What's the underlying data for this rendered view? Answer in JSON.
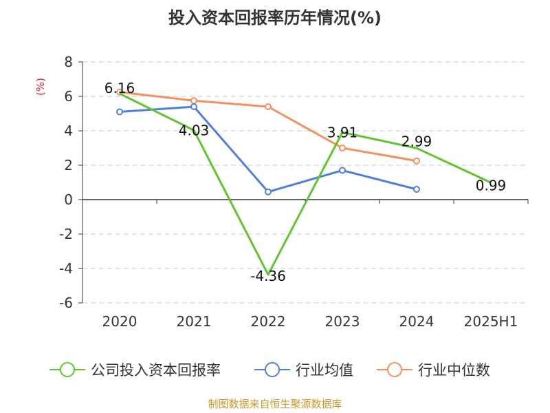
{
  "chart_data": {
    "type": "line",
    "title": "投入资本回报率历年情况(%)",
    "unit_label": "(%)",
    "categories": [
      "2020",
      "2021",
      "2022",
      "2023",
      "2024",
      "2025H1"
    ],
    "ylim": [
      -6,
      8
    ],
    "yticks": [
      8,
      6,
      4,
      2,
      0,
      -2,
      -4,
      -6
    ],
    "ytick_labels": [
      "8",
      "6",
      "4",
      "2",
      "0",
      "-2",
      "-4",
      "-6"
    ],
    "grid": true,
    "legend_position": "bottom",
    "series": [
      {
        "name": "公司投入资本回报率",
        "color": "#5fc42d",
        "values": [
          6.16,
          4.03,
          -4.36,
          3.91,
          2.99,
          0.99
        ],
        "labels": [
          "6.16",
          "4.03",
          "-4.36",
          "3.91",
          "2.99",
          "0.99"
        ]
      },
      {
        "name": "行业均值",
        "color": "#4f7fdb",
        "values": [
          5.1,
          5.4,
          0.45,
          1.7,
          0.6,
          null
        ]
      },
      {
        "name": "行业中位数",
        "color": "#f58f5a",
        "values": [
          6.25,
          5.75,
          5.4,
          3.0,
          2.25,
          null
        ]
      }
    ]
  },
  "source": "制图数据来自恒生聚源数据库"
}
